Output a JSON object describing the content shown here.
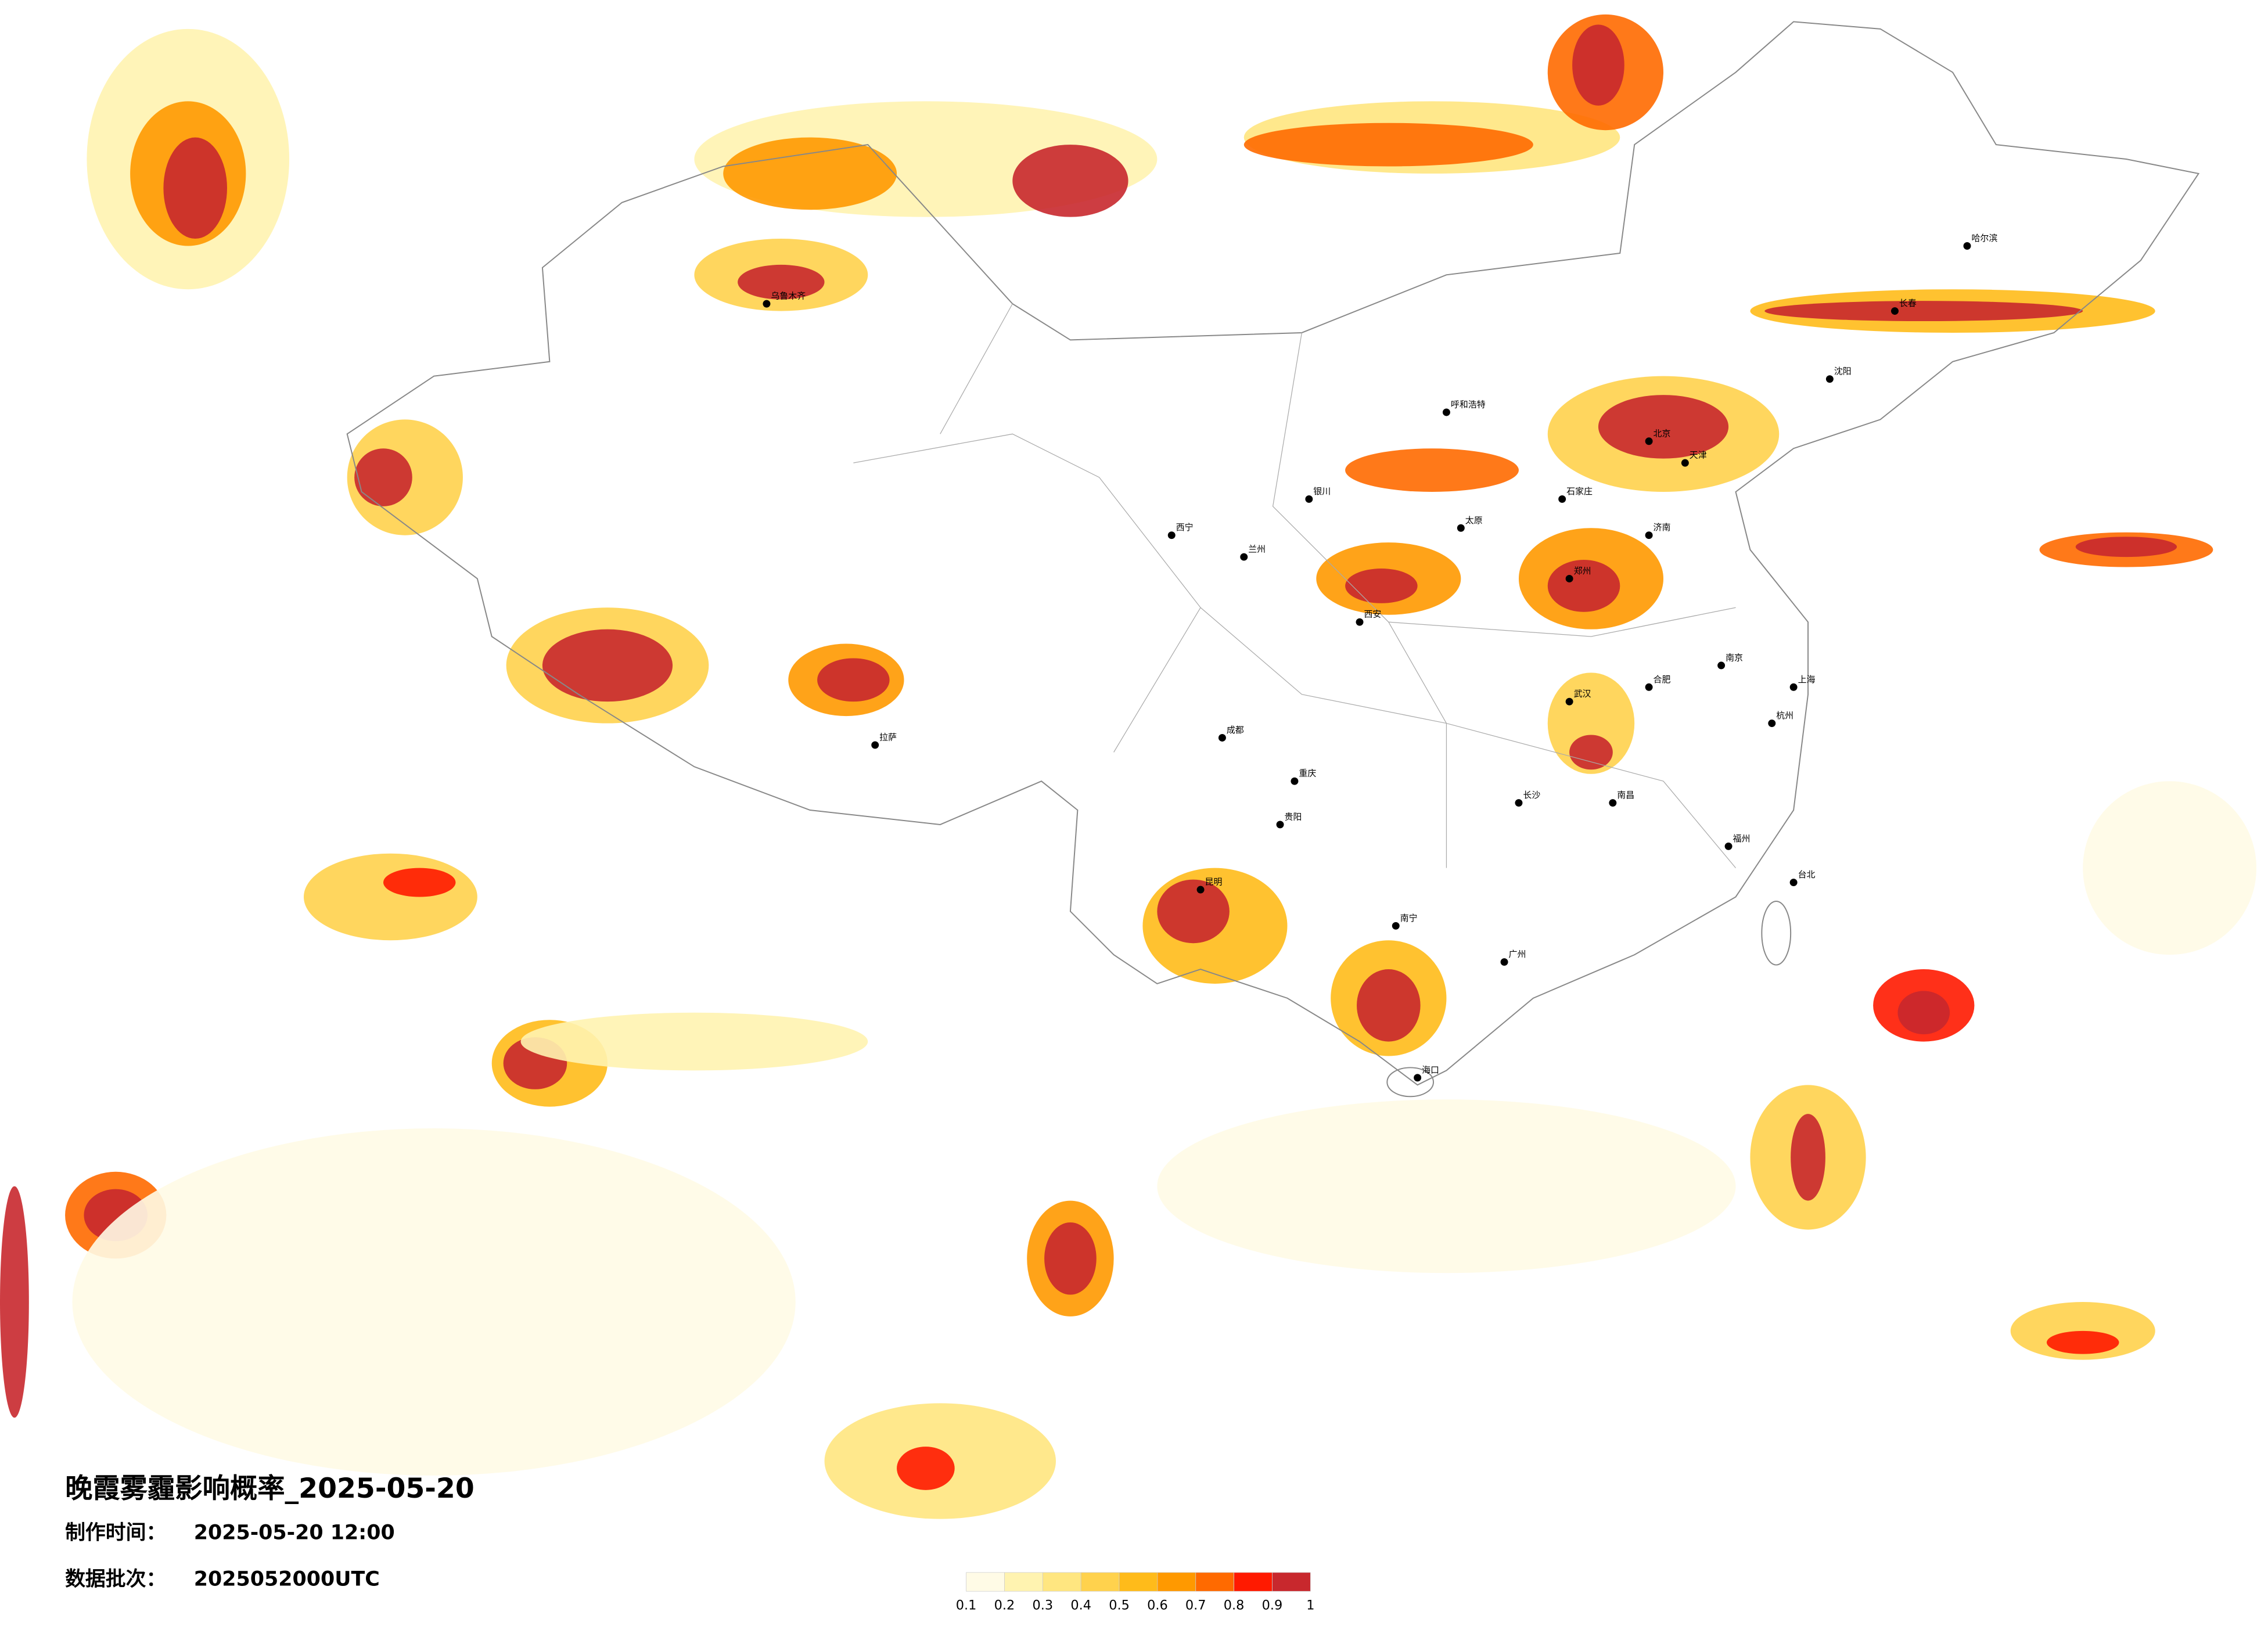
{
  "header": {
    "title": "晚霞雾霾影响概率_2025-05-20",
    "made_time_label": "制作时间：",
    "made_time": "2025-05-20 12:00",
    "batch_label": "数据批次：",
    "batch": "2025052000UTC"
  },
  "legend": {
    "ticks": [
      0.1,
      0.2,
      0.3,
      0.4,
      0.5,
      0.6,
      0.7,
      0.8,
      0.9,
      1
    ],
    "colors": [
      "#fffbe6",
      "#fff3b0",
      "#ffe680",
      "#ffd24d",
      "#ffbb1a",
      "#ff9900",
      "#ff6a00",
      "#ff1a00",
      "#c8282d"
    ]
  },
  "cities": [
    "北京",
    "天津",
    "石家庄",
    "太原",
    "呼和浩特",
    "沈阳",
    "长春",
    "哈尔滨",
    "济南",
    "郑州",
    "西安",
    "兰州",
    "西宁",
    "银川",
    "乌鲁木齐",
    "拉萨",
    "成都",
    "重庆",
    "昆明",
    "贵阳",
    "南宁",
    "广州",
    "长沙",
    "武汉",
    "南昌",
    "合肥",
    "南京",
    "上海",
    "杭州",
    "福州",
    "台北",
    "海口"
  ]
}
